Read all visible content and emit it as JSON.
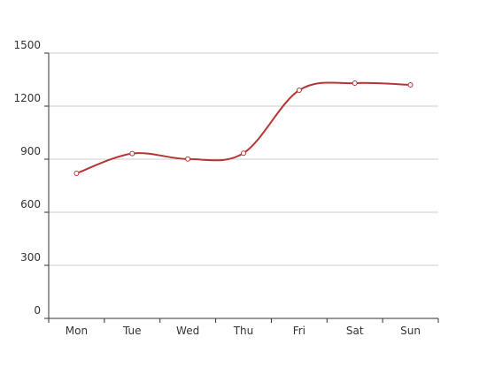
{
  "chart_data": {
    "type": "line",
    "categories": [
      "Mon",
      "Tue",
      "Wed",
      "Thu",
      "Fri",
      "Sat",
      "Sun"
    ],
    "series": [
      {
        "values": [
          820,
          932,
          901,
          934,
          1290,
          1330,
          1320
        ]
      }
    ],
    "yticks": [
      0,
      300,
      600,
      900,
      1200,
      1500
    ],
    "ylim": [
      0,
      1500
    ],
    "grid": true,
    "smooth": true,
    "line_color": "#b53434",
    "marker_fill": "#ffffff",
    "axis_color": "#333333",
    "grid_color": "#cccccc"
  }
}
